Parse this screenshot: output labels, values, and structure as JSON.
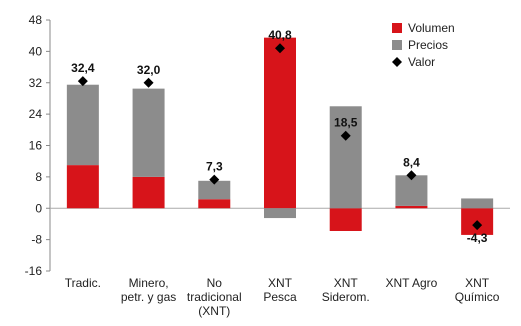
{
  "chart_data": {
    "type": "bar",
    "categories": [
      "Tradic.",
      "Minero, petr. y gas",
      "No tradicional (XNT)",
      "XNT Pesca",
      "XNT Siderom.",
      "XNT Agro",
      "XNT Químico"
    ],
    "category_lines": [
      [
        "Tradic."
      ],
      [
        "Minero,",
        "petr. y gas"
      ],
      [
        "No",
        "tradicional",
        "(XNT)"
      ],
      [
        "XNT",
        "Pesca"
      ],
      [
        "XNT",
        "Siderom."
      ],
      [
        "XNT Agro"
      ],
      [
        "XNT",
        "Químico"
      ]
    ],
    "series": [
      {
        "name": "Volumen",
        "type": "bar",
        "color": "#d7141a",
        "values": [
          11.0,
          8.0,
          2.3,
          43.5,
          -5.8,
          0.6,
          -6.8
        ]
      },
      {
        "name": "Precios",
        "type": "bar",
        "color": "#8c8c8c",
        "values": [
          20.5,
          22.5,
          4.7,
          -2.5,
          26.0,
          7.8,
          2.5
        ]
      },
      {
        "name": "Valor",
        "type": "marker",
        "color": "#000000",
        "values": [
          32.4,
          32.0,
          7.3,
          40.8,
          18.5,
          8.4,
          -4.3
        ]
      }
    ],
    "data_labels": [
      "32,4",
      "32,0",
      "7,3",
      "40,8",
      "18,5",
      "8,4",
      "-4,3"
    ],
    "y_ticks": [
      "48",
      "40",
      "32",
      "24",
      "16",
      "8",
      "0",
      "-8",
      "-16"
    ],
    "ylim": [
      -16,
      48
    ],
    "ytick_step": 8,
    "grid": false,
    "legend_position": "top-right",
    "title": "",
    "xlabel": "",
    "ylabel": ""
  }
}
